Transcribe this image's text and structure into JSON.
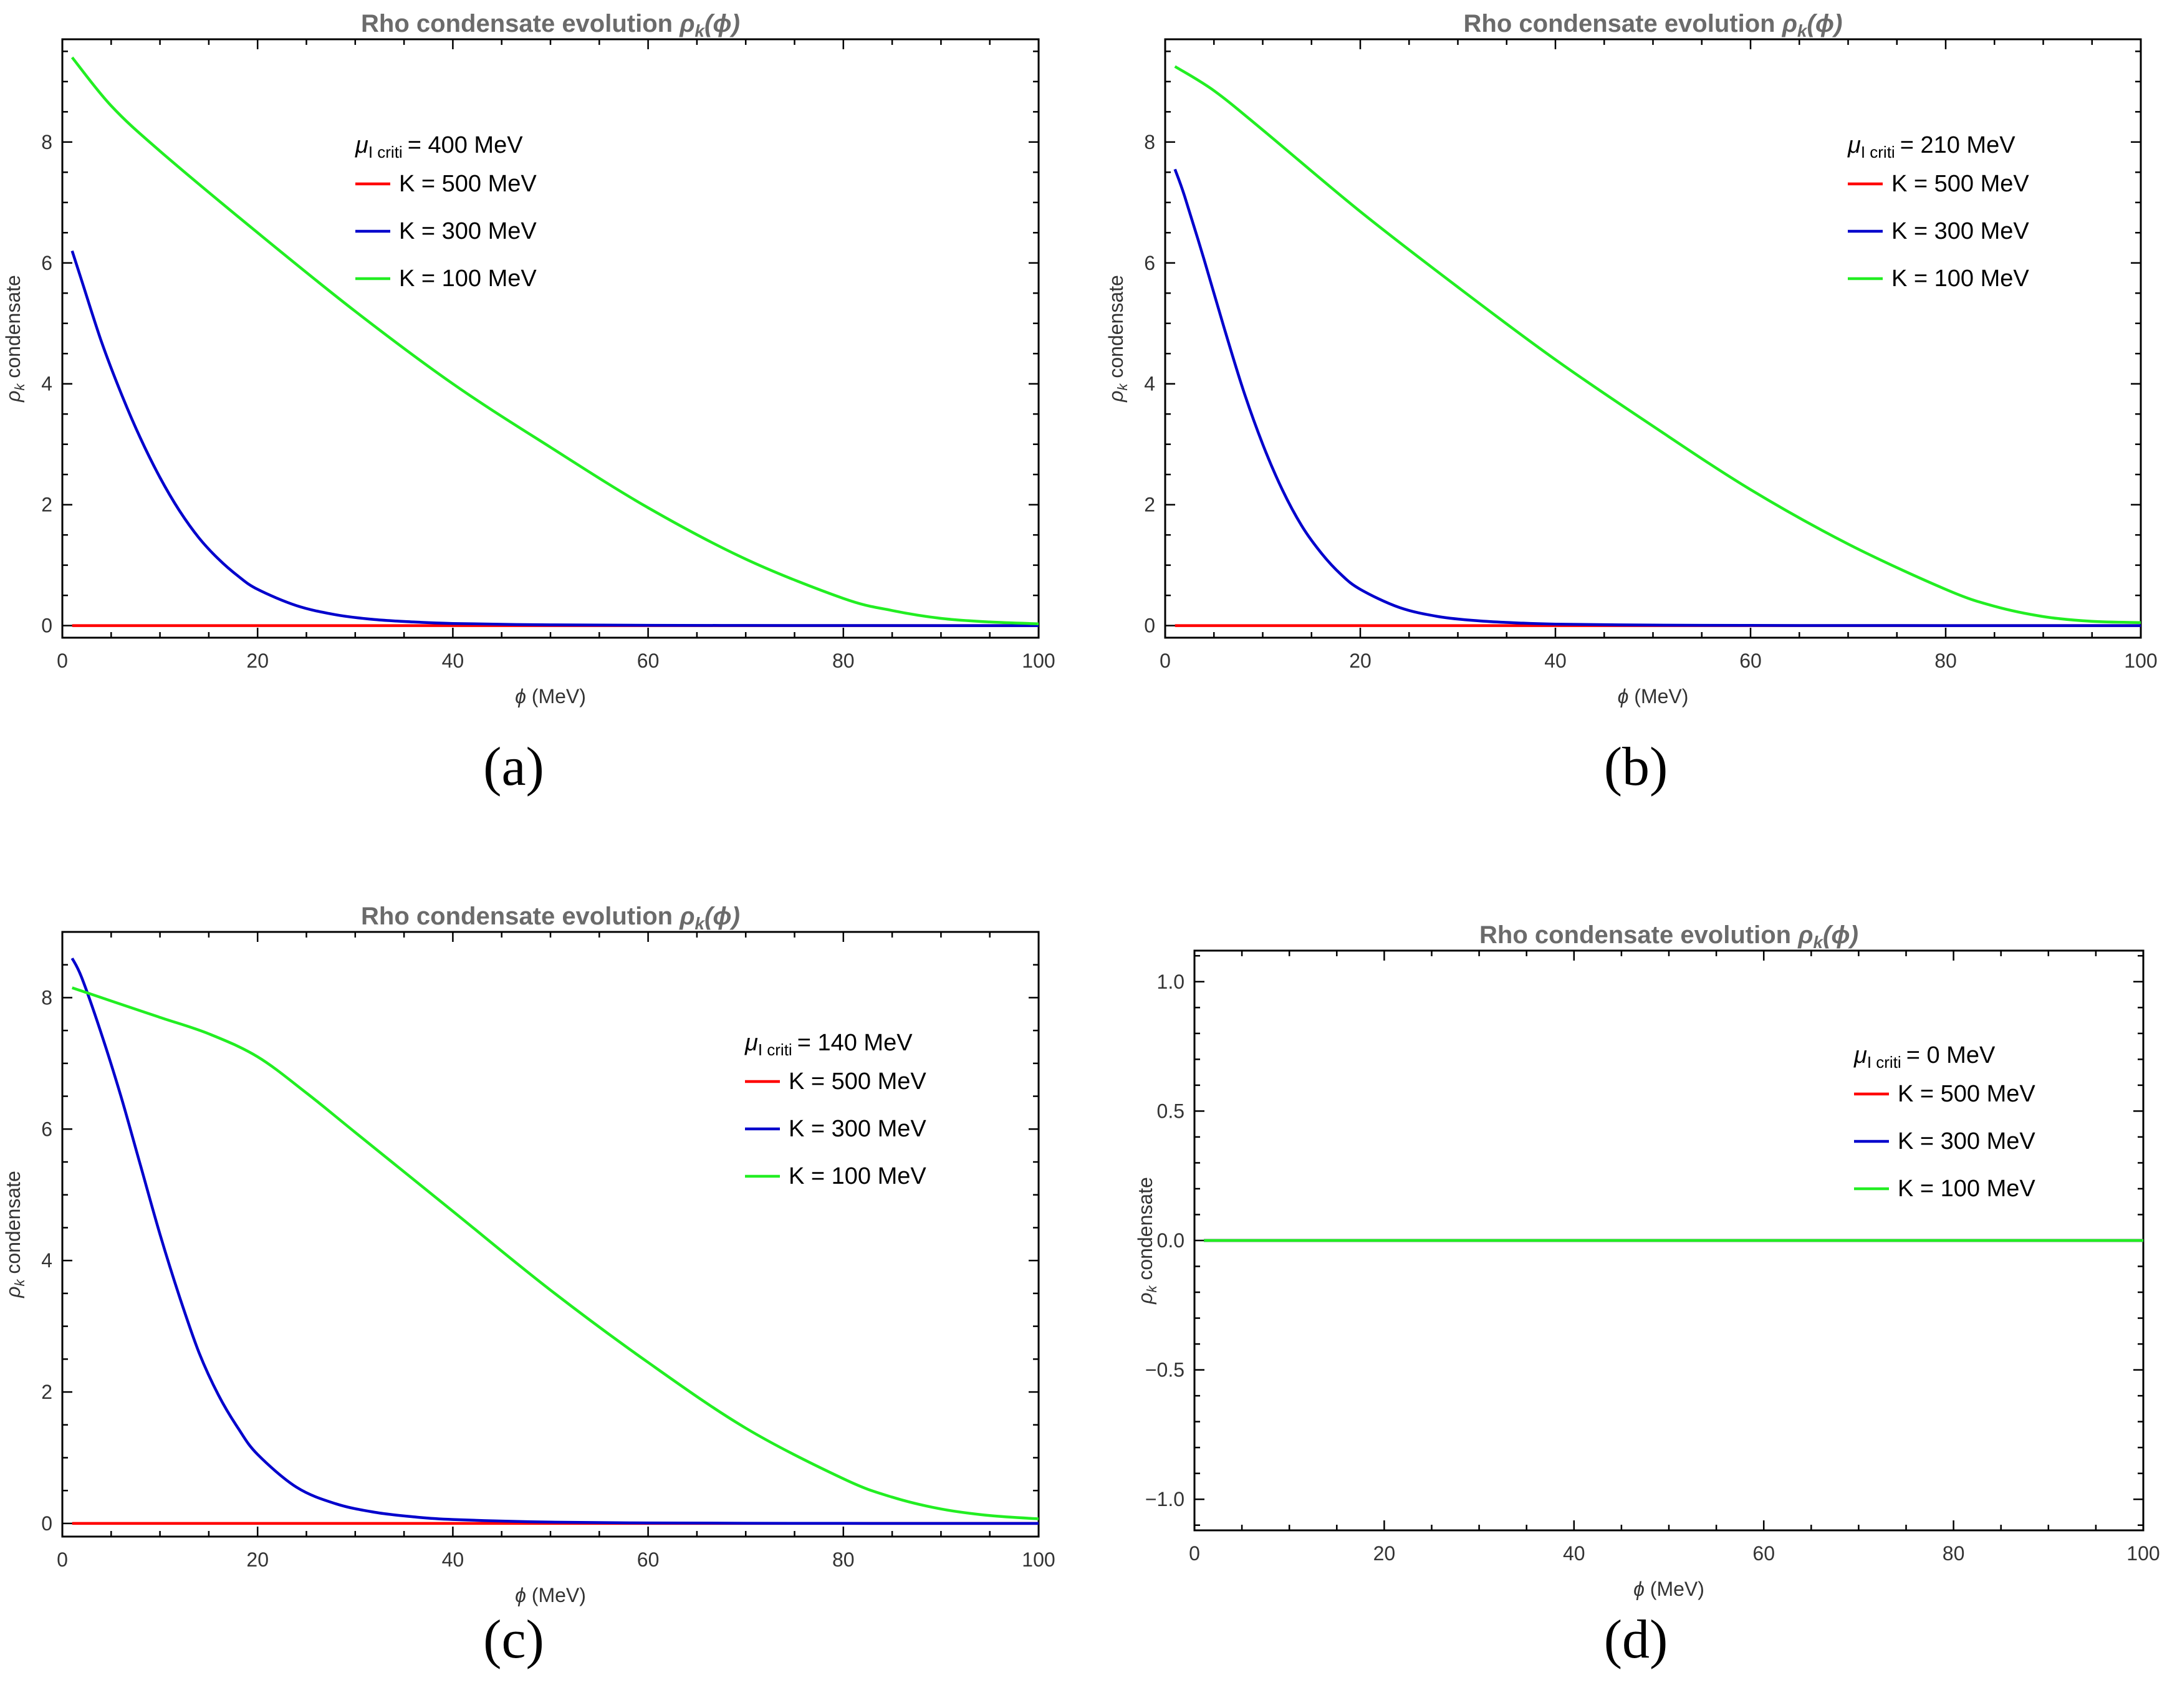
{
  "chart_data": [
    {
      "type": "line",
      "title": "Rho condensate evolution ρk(ϕ)",
      "title_main": "Rho condensate evolution ",
      "title_sym": "ρ",
      "title_sub": "k",
      "title_arg": "(ϕ)",
      "xlabel": "ϕ (MeV)",
      "ylabel": "ρk condensate",
      "xlim": [
        0,
        100
      ],
      "ylim": [
        -0.2,
        9.7
      ],
      "xticks": [
        0,
        20,
        40,
        60,
        80,
        100
      ],
      "yticks": [
        0,
        2,
        4,
        6,
        8
      ],
      "legend_title": "μI criti = 400 MeV",
      "legend_title_value": "= 400 MeV",
      "legend_position": "upper-center",
      "caption": "(a)",
      "series": [
        {
          "name": "K = 500 MeV",
          "color": "#ff0000",
          "x": [
            1,
            20,
            40,
            60,
            80,
            100
          ],
          "y": [
            0,
            0,
            0,
            0,
            0,
            0
          ]
        },
        {
          "name": "K = 300 MeV",
          "color": "#0000cc",
          "x": [
            1,
            2,
            4,
            6,
            8,
            10,
            12,
            14,
            16,
            18,
            20,
            24,
            28,
            32,
            36,
            40,
            50,
            60,
            70,
            80,
            90,
            100
          ],
          "y": [
            6.2,
            5.7,
            4.7,
            3.85,
            3.1,
            2.45,
            1.9,
            1.45,
            1.1,
            0.82,
            0.6,
            0.33,
            0.18,
            0.1,
            0.06,
            0.035,
            0.012,
            0.005,
            0.002,
            0.001,
            0.0005,
            0
          ]
        },
        {
          "name": "K = 100 MeV",
          "color": "#22ee22",
          "x": [
            1,
            5,
            10,
            20,
            30,
            40,
            50,
            60,
            70,
            80,
            85,
            90,
            95,
            100
          ],
          "y": [
            9.4,
            8.6,
            7.85,
            6.5,
            5.2,
            4.0,
            2.95,
            1.95,
            1.1,
            0.45,
            0.25,
            0.12,
            0.06,
            0.03
          ]
        }
      ]
    },
    {
      "type": "line",
      "title": "Rho condensate evolution ρk(ϕ)",
      "title_main": "Rho condensate evolution ",
      "title_sym": "ρ",
      "title_sub": "k",
      "title_arg": "(ϕ)",
      "xlabel": "ϕ (MeV)",
      "ylabel": "ρk condensate",
      "xlim": [
        0,
        100
      ],
      "ylim": [
        -0.2,
        9.7
      ],
      "xticks": [
        0,
        20,
        40,
        60,
        80,
        100
      ],
      "yticks": [
        0,
        2,
        4,
        6,
        8
      ],
      "legend_title": "μI criti = 210 MeV",
      "legend_title_value": "= 210 MeV",
      "legend_position": "upper-right",
      "caption": "(b)",
      "series": [
        {
          "name": "K = 500 MeV",
          "color": "#ff0000",
          "x": [
            1,
            20,
            40,
            60,
            80,
            100
          ],
          "y": [
            0,
            0,
            0,
            0,
            0,
            0
          ]
        },
        {
          "name": "K = 300 MeV",
          "color": "#0000cc",
          "x": [
            1,
            2,
            4,
            6,
            8,
            10,
            12,
            14,
            16,
            18,
            20,
            24,
            28,
            32,
            36,
            40,
            50,
            60,
            70,
            80,
            90,
            100
          ],
          "y": [
            7.55,
            7.1,
            6.05,
            4.95,
            3.9,
            3.0,
            2.25,
            1.65,
            1.2,
            0.85,
            0.6,
            0.3,
            0.15,
            0.08,
            0.045,
            0.025,
            0.008,
            0.003,
            0.001,
            0.0005,
            0.0002,
            0
          ]
        },
        {
          "name": "K = 100 MeV",
          "color": "#22ee22",
          "x": [
            1,
            5,
            10,
            20,
            30,
            40,
            50,
            60,
            70,
            80,
            85,
            90,
            95,
            100
          ],
          "y": [
            9.25,
            8.85,
            8.2,
            6.85,
            5.6,
            4.4,
            3.3,
            2.25,
            1.35,
            0.6,
            0.32,
            0.15,
            0.07,
            0.05
          ]
        }
      ]
    },
    {
      "type": "line",
      "title": "Rho condensate evolution ρk(ϕ)",
      "title_main": "Rho condensate evolution ",
      "title_sym": "ρ",
      "title_sub": "k",
      "title_arg": "(ϕ)",
      "xlabel": "ϕ (MeV)",
      "ylabel": "ρk condensate",
      "xlim": [
        0,
        100
      ],
      "ylim": [
        -0.2,
        9.0
      ],
      "xticks": [
        0,
        20,
        40,
        60,
        80,
        100
      ],
      "yticks": [
        0,
        2,
        4,
        6,
        8
      ],
      "legend_title": "μI criti = 140 MeV",
      "legend_title_value": "= 140 MeV",
      "legend_position": "upper-right",
      "caption": "(c)",
      "series": [
        {
          "name": "K = 500 MeV",
          "color": "#ff0000",
          "x": [
            1,
            20,
            40,
            60,
            80,
            100
          ],
          "y": [
            0,
            0,
            0,
            0,
            0,
            0
          ]
        },
        {
          "name": "K = 300 MeV",
          "color": "#0000cc",
          "x": [
            1,
            2,
            4,
            6,
            8,
            10,
            12,
            14,
            16,
            18,
            20,
            24,
            28,
            32,
            36,
            40,
            50,
            60,
            70,
            80,
            90,
            100
          ],
          "y": [
            8.6,
            8.3,
            7.45,
            6.5,
            5.45,
            4.4,
            3.45,
            2.6,
            1.95,
            1.45,
            1.05,
            0.55,
            0.3,
            0.17,
            0.1,
            0.06,
            0.02,
            0.008,
            0.003,
            0.001,
            0.0005,
            0
          ]
        },
        {
          "name": "K = 100 MeV",
          "color": "#22ee22",
          "x": [
            1,
            5,
            10,
            15,
            20,
            25,
            30,
            40,
            50,
            60,
            70,
            80,
            85,
            90,
            95,
            100
          ],
          "y": [
            8.15,
            7.95,
            7.7,
            7.45,
            7.1,
            6.55,
            5.95,
            4.75,
            3.55,
            2.45,
            1.45,
            0.68,
            0.4,
            0.22,
            0.12,
            0.07
          ]
        }
      ]
    },
    {
      "type": "line",
      "title": "Rho condensate evolution ρk(ϕ)",
      "title_main": "Rho condensate evolution ",
      "title_sym": "ρ",
      "title_sub": "k",
      "title_arg": "(ϕ)",
      "xlabel": "ϕ (MeV)",
      "ylabel": "ρk condensate",
      "xlim": [
        0,
        100
      ],
      "ylim": [
        -1.12,
        1.12
      ],
      "xticks": [
        0,
        20,
        40,
        60,
        80,
        100
      ],
      "yticks": [
        -1.0,
        -0.5,
        0.0,
        0.5,
        1.0
      ],
      "ytick_labels": [
        "−1.0",
        "−0.5",
        "0.0",
        "0.5",
        "1.0"
      ],
      "legend_title": "μI criti = 0 MeV",
      "legend_title_value": "= 0 MeV",
      "legend_position": "upper-right",
      "caption": "(d)",
      "series": [
        {
          "name": "K = 500 MeV",
          "color": "#ff0000",
          "x": [
            1,
            100
          ],
          "y": [
            0,
            0
          ]
        },
        {
          "name": "K = 300 MeV",
          "color": "#0000cc",
          "x": [
            1,
            100
          ],
          "y": [
            0,
            0
          ]
        },
        {
          "name": "K = 100 MeV",
          "color": "#22ee22",
          "x": [
            1,
            100
          ],
          "y": [
            0,
            0
          ]
        }
      ]
    }
  ]
}
